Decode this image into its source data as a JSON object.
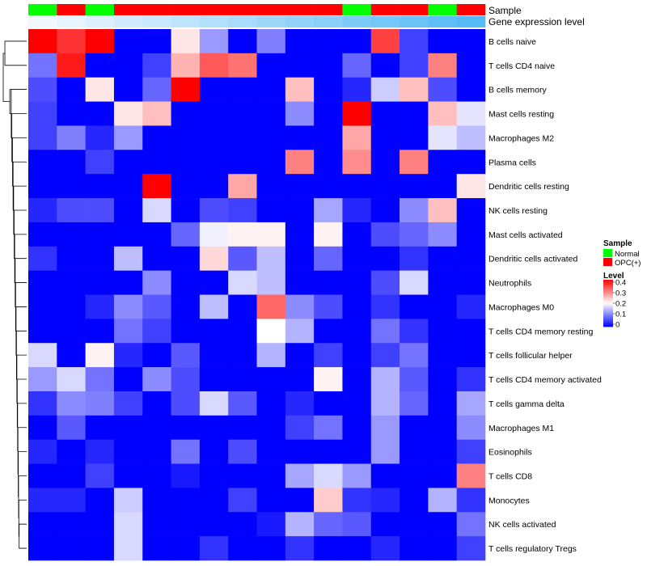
{
  "chart_data": {
    "type": "heatmap",
    "annotation_labels": [
      "Sample",
      "Gene expression level"
    ],
    "sample_groups": [
      "Normal",
      "OPC(+)",
      "Normal",
      "OPC(+)",
      "OPC(+)",
      "OPC(+)",
      "OPC(+)",
      "OPC(+)",
      "OPC(+)",
      "OPC(+)",
      "OPC(+)",
      "Normal",
      "OPC(+)",
      "OPC(+)",
      "Normal",
      "OPC(+)"
    ],
    "gene_expression_level": [
      0.0,
      0.05,
      0.1,
      0.15,
      0.2,
      0.25,
      0.3,
      0.35,
      0.4,
      0.45,
      0.5,
      0.55,
      0.6,
      0.65,
      0.7,
      0.75
    ],
    "rows": [
      "B cells naive",
      "T cells CD4 naive",
      "B cells memory",
      "Mast cells resting",
      "Macrophages M2",
      "Plasma cells",
      "Dendritic cells resting",
      "NK cells resting",
      "Mast cells activated",
      "Dendritic cells activated",
      "Neutrophils",
      "Macrophages M0",
      "T cells CD4 memory resting",
      "T cells follicular helper",
      "T cells CD4 memory activated",
      "T cells gamma delta",
      "Macrophages M1",
      "Eosinophils",
      "T cells CD8",
      "Monocytes",
      "NK cells activated",
      "T cells regulatory  Tregs"
    ],
    "values": [
      [
        0.4,
        0.36,
        0.4,
        0.0,
        0.0,
        0.22,
        0.12,
        0.0,
        0.1,
        0.0,
        0.0,
        0.0,
        0.35,
        0.05,
        0.0,
        0.0
      ],
      [
        0.09,
        0.38,
        0.0,
        0.0,
        0.05,
        0.26,
        0.33,
        0.31,
        0.0,
        0.0,
        0.0,
        0.08,
        0.0,
        0.05,
        0.3,
        0.0
      ],
      [
        0.06,
        0.0,
        0.22,
        0.0,
        0.08,
        0.4,
        0.0,
        0.0,
        0.0,
        0.25,
        0.0,
        0.03,
        0.16,
        0.25,
        0.06,
        0.0
      ],
      [
        0.05,
        0.0,
        0.0,
        0.22,
        0.25,
        0.0,
        0.0,
        0.0,
        0.0,
        0.11,
        0.0,
        0.4,
        0.0,
        0.0,
        0.25,
        0.18
      ],
      [
        0.05,
        0.1,
        0.03,
        0.12,
        0.0,
        0.0,
        0.0,
        0.0,
        0.0,
        0.0,
        0.0,
        0.27,
        0.0,
        0.0,
        0.18,
        0.15
      ],
      [
        0.0,
        0.0,
        0.05,
        0.0,
        0.0,
        0.0,
        0.0,
        0.0,
        0.0,
        0.3,
        0.0,
        0.29,
        0.0,
        0.3,
        0.0,
        0.0
      ],
      [
        0.0,
        0.0,
        0.0,
        0.0,
        0.4,
        0.0,
        0.0,
        0.27,
        0.0,
        0.0,
        0.0,
        0.0,
        0.0,
        0.0,
        0.0,
        0.22
      ],
      [
        0.03,
        0.06,
        0.06,
        0.0,
        0.17,
        0.0,
        0.06,
        0.05,
        0.0,
        0.0,
        0.13,
        0.03,
        0.0,
        0.11,
        0.25,
        0.0
      ],
      [
        0.0,
        0.0,
        0.0,
        0.0,
        0.0,
        0.08,
        0.19,
        0.21,
        0.21,
        0.0,
        0.21,
        0.0,
        0.06,
        0.08,
        0.11,
        0.0
      ],
      [
        0.04,
        0.0,
        0.0,
        0.15,
        0.0,
        0.0,
        0.23,
        0.07,
        0.15,
        0.0,
        0.08,
        0.0,
        0.0,
        0.04,
        0.0,
        0.0
      ],
      [
        0.0,
        0.0,
        0.0,
        0.0,
        0.11,
        0.0,
        0.0,
        0.17,
        0.15,
        0.0,
        0.0,
        0.0,
        0.06,
        0.17,
        0.0,
        0.0
      ],
      [
        0.0,
        0.0,
        0.03,
        0.11,
        0.07,
        0.0,
        0.15,
        0.0,
        0.32,
        0.11,
        0.06,
        0.0,
        0.04,
        0.0,
        0.0,
        0.03
      ],
      [
        0.0,
        0.0,
        0.0,
        0.09,
        0.05,
        0.0,
        0.0,
        0.0,
        0.2,
        0.14,
        0.0,
        0.0,
        0.09,
        0.04,
        0.0,
        0.0
      ],
      [
        0.17,
        0.0,
        0.21,
        0.03,
        0.0,
        0.07,
        0.0,
        0.0,
        0.14,
        0.0,
        0.05,
        0.0,
        0.05,
        0.09,
        0.0,
        0.0
      ],
      [
        0.12,
        0.17,
        0.09,
        0.0,
        0.11,
        0.06,
        0.0,
        0.0,
        0.0,
        0.0,
        0.21,
        0.0,
        0.14,
        0.07,
        0.0,
        0.04
      ],
      [
        0.04,
        0.11,
        0.1,
        0.05,
        0.0,
        0.06,
        0.17,
        0.07,
        0.0,
        0.03,
        0.0,
        0.0,
        0.14,
        0.08,
        0.0,
        0.13
      ],
      [
        0.0,
        0.07,
        0.0,
        0.0,
        0.0,
        0.0,
        0.0,
        0.0,
        0.0,
        0.05,
        0.09,
        0.0,
        0.12,
        0.0,
        0.0,
        0.11
      ],
      [
        0.03,
        0.0,
        0.03,
        0.0,
        0.0,
        0.09,
        0.0,
        0.06,
        0.0,
        0.0,
        0.0,
        0.0,
        0.12,
        0.0,
        0.0,
        0.05
      ],
      [
        0.0,
        0.0,
        0.05,
        0.0,
        0.0,
        0.02,
        0.0,
        0.0,
        0.0,
        0.13,
        0.17,
        0.12,
        0.0,
        0.0,
        0.0,
        0.3
      ],
      [
        0.03,
        0.03,
        0.0,
        0.16,
        0.0,
        0.0,
        0.0,
        0.05,
        0.0,
        0.0,
        0.24,
        0.04,
        0.03,
        0.0,
        0.14,
        0.04
      ],
      [
        0.0,
        0.0,
        0.0,
        0.17,
        0.0,
        0.0,
        0.0,
        0.0,
        0.02,
        0.14,
        0.08,
        0.07,
        0.0,
        0.0,
        0.0,
        0.09
      ],
      [
        0.0,
        0.0,
        0.0,
        0.17,
        0.0,
        0.0,
        0.04,
        0.0,
        0.0,
        0.04,
        0.0,
        0.0,
        0.03,
        0.0,
        0.0,
        0.05
      ]
    ],
    "color_scale": {
      "min": 0,
      "mid": 0.2,
      "max": 0.4,
      "low": "#0000FF",
      "mid_color": "#FFFFFF",
      "high": "#FF0000"
    },
    "legend": {
      "sample_title": "Sample",
      "sample_items": [
        {
          "label": "Normal",
          "color": "#00FF00"
        },
        {
          "label": "OPC(+)",
          "color": "#FF0000"
        }
      ],
      "level_title": "Level",
      "level_ticks": [
        "0.4",
        "0.3",
        "0.2",
        "0.1",
        "0"
      ]
    },
    "gene_expression_colors": {
      "low": "#F2F8FF",
      "high": "#55BBF5"
    }
  }
}
